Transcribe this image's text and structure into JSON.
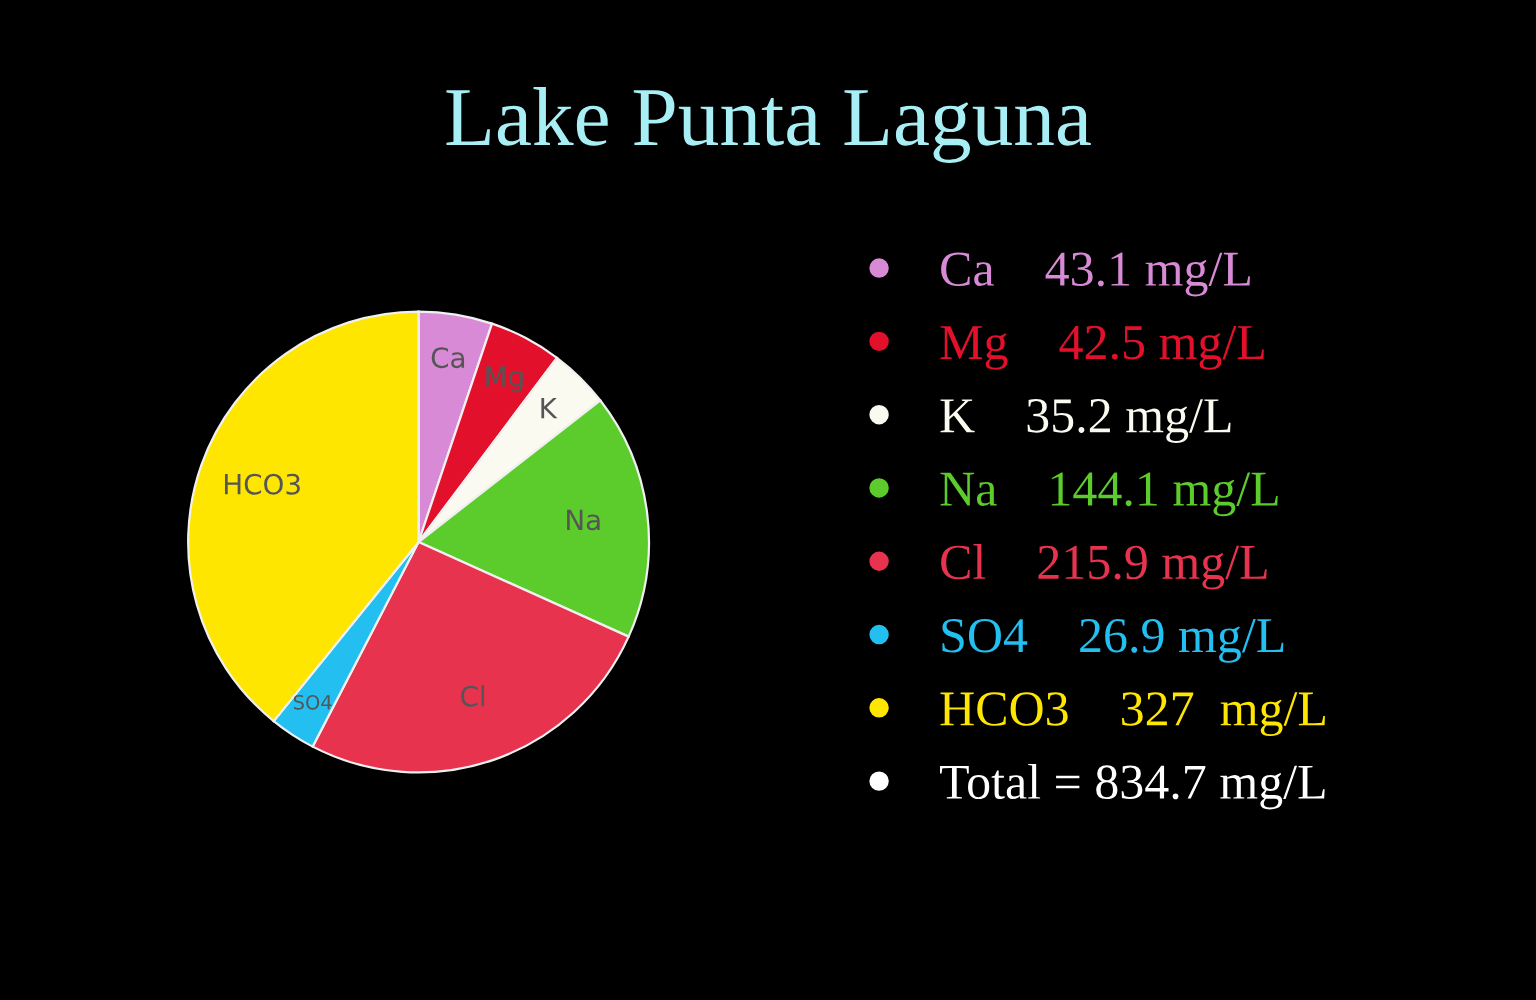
{
  "chart_data": {
    "type": "pie",
    "title": "Lake Punta Laguna",
    "categories": [
      "Ca",
      "Mg",
      "K",
      "Na",
      "Cl",
      "SO4",
      "HCO3"
    ],
    "values": [
      43.1,
      42.5,
      35.2,
      144.1,
      215.9,
      26.9,
      327
    ],
    "colors": [
      "#d98ad6",
      "#e3102c",
      "#fafaf0",
      "#5ccc2c",
      "#e8334f",
      "#22bff0",
      "#ffe600"
    ],
    "value_labels": [
      "43.1 mg/L",
      "42.5 mg/L",
      "35.2 mg/L",
      "144.1 mg/L",
      "215.9 mg/L",
      "26.9 mg/L",
      "327  mg/L"
    ],
    "annotations": [
      "Total = 834.7 mg/L"
    ]
  }
}
